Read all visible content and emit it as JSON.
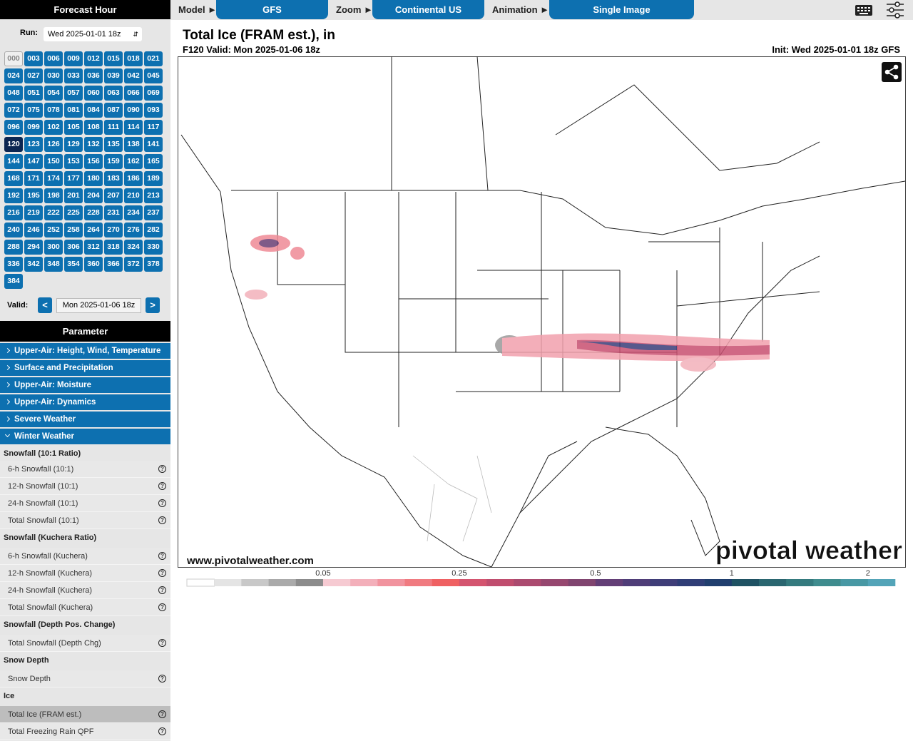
{
  "top_bar": {
    "model_label": "Model ►",
    "model": "GFS",
    "zoom_label": "Zoom ►",
    "zoom": "Continental US",
    "animation_label": "Animation ►",
    "animation": "Single Image"
  },
  "sidebar": {
    "forecast_hour_title": "Forecast Hour",
    "run_label": "Run:",
    "run": "Wed 2025-01-01 18z",
    "hours": [
      "000",
      "003",
      "006",
      "009",
      "012",
      "015",
      "018",
      "021",
      "024",
      "027",
      "030",
      "033",
      "036",
      "039",
      "042",
      "045",
      "048",
      "051",
      "054",
      "057",
      "060",
      "063",
      "066",
      "069",
      "072",
      "075",
      "078",
      "081",
      "084",
      "087",
      "090",
      "093",
      "096",
      "099",
      "102",
      "105",
      "108",
      "111",
      "114",
      "117",
      "120",
      "123",
      "126",
      "129",
      "132",
      "135",
      "138",
      "141",
      "144",
      "147",
      "150",
      "153",
      "156",
      "159",
      "162",
      "165",
      "168",
      "171",
      "174",
      "177",
      "180",
      "183",
      "186",
      "189",
      "192",
      "195",
      "198",
      "201",
      "204",
      "207",
      "210",
      "213",
      "216",
      "219",
      "222",
      "225",
      "228",
      "231",
      "234",
      "237",
      "240",
      "246",
      "252",
      "258",
      "264",
      "270",
      "276",
      "282",
      "288",
      "294",
      "300",
      "306",
      "312",
      "318",
      "324",
      "330",
      "336",
      "342",
      "348",
      "354",
      "360",
      "366",
      "372",
      "378",
      "384"
    ],
    "selected_hour_index": 40,
    "unavailable_hour_index": 0,
    "valid_label": "Valid:",
    "prev": "<",
    "valid": "Mon 2025-01-06 18z",
    "next": ">",
    "parameter_title": "Parameter",
    "categories": [
      "Upper-Air: Height, Wind, Temperature",
      "Surface and Precipitation",
      "Upper-Air: Moisture",
      "Upper-Air: Dynamics",
      "Severe Weather",
      "Winter Weather"
    ],
    "expanded_category_index": 5,
    "help_icon": "?",
    "groups": [
      {
        "heading": "Snowfall (10:1 Ratio)",
        "items": [
          "6-h Snowfall (10:1)",
          "12-h Snowfall (10:1)",
          "24-h Snowfall (10:1)",
          "Total Snowfall (10:1)"
        ]
      },
      {
        "heading": "Snowfall (Kuchera Ratio)",
        "items": [
          "6-h Snowfall (Kuchera)",
          "12-h Snowfall (Kuchera)",
          "24-h Snowfall (Kuchera)",
          "Total Snowfall (Kuchera)"
        ]
      },
      {
        "heading": "Snowfall (Depth Pos. Change)",
        "items": [
          "Total Snowfall (Depth Chg)"
        ]
      },
      {
        "heading": "Snow Depth",
        "items": [
          "Snow Depth"
        ]
      },
      {
        "heading": "Ice",
        "items": [
          "Total Ice (FRAM est.)",
          "Total Freezing Rain QPF"
        ]
      }
    ],
    "selected_item": [
      4,
      0
    ]
  },
  "map": {
    "title": "Total Ice (FRAM est.), in",
    "subtitle": "F120 Valid: Mon 2025-01-06 18z",
    "init": "Init: Wed 2025-01-01 18z GFS",
    "url": "www.pivotalweather.com",
    "logo": "pivotal weather",
    "colorbar": {
      "colors": [
        "#ffffff",
        "#e4e4e4",
        "#c8c8c8",
        "#aaaaaa",
        "#8c8c8c",
        "#f6cad2",
        "#f3afba",
        "#f1939e",
        "#f07a80",
        "#ef6062",
        "#d4546f",
        "#c04d6e",
        "#ab4a6f",
        "#96476f",
        "#80446f",
        "#633e76",
        "#4f3d78",
        "#3f3d78",
        "#2f3d76",
        "#203e6e",
        "#1f5263",
        "#2a6670",
        "#347a7e",
        "#3f8c8e",
        "#4898a4",
        "#53a4b8"
      ],
      "tick_labels": [
        "0.05",
        "0.25",
        "0.5",
        "1",
        "2"
      ]
    }
  }
}
